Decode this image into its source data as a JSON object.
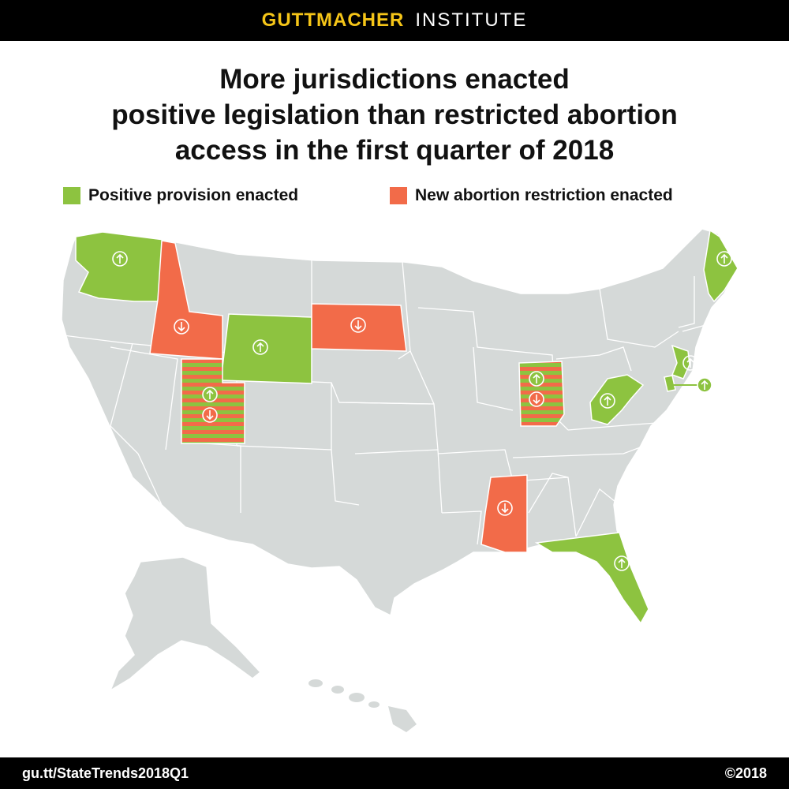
{
  "header": {
    "brand_name": "GUTTMACHER",
    "brand_sub": "INSTITUTE"
  },
  "title": {
    "line1": "More jurisdictions enacted",
    "line2": "positive legislation than restricted abortion",
    "line3": "access in the first quarter of 2018"
  },
  "legend": {
    "positive_label": "Positive provision enacted",
    "restriction_label": "New abortion restriction enacted"
  },
  "colors": {
    "positive": "#8dc340",
    "restriction": "#f26b49",
    "base_state": "#d5d9d8",
    "state_border": "#ffffff"
  },
  "map": {
    "positive_states": [
      "Washington",
      "Wyoming",
      "Maine",
      "New Jersey",
      "West Virginia",
      "Florida",
      "Delaware"
    ],
    "restriction_states": [
      "Idaho",
      "South Dakota",
      "Mississippi"
    ],
    "mixed_states": [
      "Utah",
      "Indiana"
    ]
  },
  "footer": {
    "url": "gu.tt/StateTrends2018Q1",
    "copyright": "©2018"
  }
}
